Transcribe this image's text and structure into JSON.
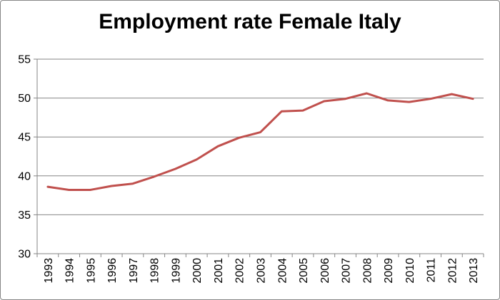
{
  "chart_data": {
    "type": "line",
    "title": "Employment rate Female Italy",
    "xlabel": "",
    "ylabel": "",
    "categories": [
      "1993",
      "1994",
      "1995",
      "1996",
      "1997",
      "1998",
      "1999",
      "2000",
      "2001",
      "2002",
      "2003",
      "2004",
      "2005",
      "2006",
      "2007",
      "2008",
      "2009",
      "2010",
      "2011",
      "2012",
      "2013"
    ],
    "series": [
      {
        "values": [
          38.6,
          38.2,
          38.2,
          38.7,
          39.0,
          39.9,
          40.9,
          42.1,
          43.8,
          44.9,
          45.6,
          48.3,
          48.4,
          49.6,
          49.9,
          50.6,
          49.7,
          49.5,
          49.9,
          50.5,
          49.9
        ],
        "color": "#C0504D"
      }
    ],
    "ylim": [
      30,
      55
    ],
    "yticks": [
      30,
      35,
      40,
      45,
      50,
      55
    ],
    "grid": true,
    "legend": "none"
  }
}
